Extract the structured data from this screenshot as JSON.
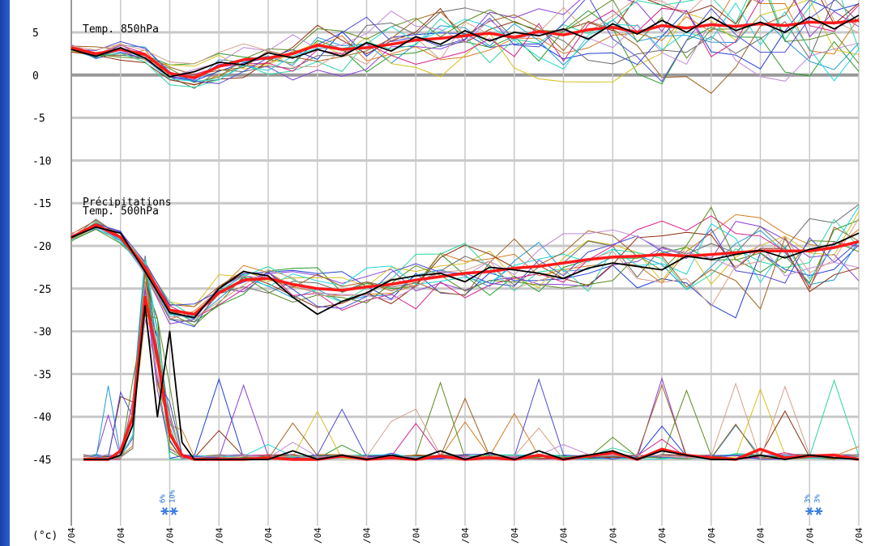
{
  "chart_data": {
    "type": "line",
    "unit_label": "(°c)",
    "panel_labels": [
      "Temp. 850hPa",
      "Précipitations",
      "Temp. 500hPa"
    ],
    "y_ticks": [
      5,
      0,
      -5,
      -10,
      -15,
      -20,
      -25,
      -30,
      -35,
      -40,
      -45
    ],
    "ylim": [
      -52,
      9
    ],
    "zero_line": 0,
    "x_tick_labels": [
      "/04",
      "/04",
      "/04",
      "/04",
      "/04",
      "/04",
      "/04",
      "/04",
      "/04",
      "/04",
      "/04",
      "/04",
      "/04",
      "/04",
      "/04",
      "/04",
      "/04"
    ],
    "snow_markers": [
      {
        "x": 2.0,
        "labels": [
          "6%",
          "10%"
        ]
      },
      {
        "x": 15.1,
        "labels": [
          "3%",
          "3%"
        ]
      }
    ],
    "colors": {
      "mean": "#ff1a1a",
      "control": "#000000",
      "grid": "#c8c8c8",
      "zero_line": "#999999",
      "members": [
        "#1f3fd6",
        "#2a9a2a",
        "#8a3fd6",
        "#d67a1f",
        "#1f9ad6",
        "#d6c01f",
        "#6a6a6a",
        "#8a2a0a",
        "#2ad6a0",
        "#d61f8a",
        "#5a8a1f",
        "#1fd6d6",
        "#a0601f",
        "#4a4ad6",
        "#c08ad6",
        "#d6a08a"
      ]
    },
    "series": [
      {
        "role": "mean",
        "panel": "850",
        "x": [
          0,
          0.5,
          1,
          1.5,
          2,
          2.5,
          3,
          3.5,
          4,
          4.5,
          5,
          5.5,
          6,
          6.5,
          7,
          7.5,
          8,
          8.5,
          9,
          9.5,
          10,
          10.5,
          11,
          11.5,
          12,
          12.5,
          13,
          13.5,
          14,
          14.5,
          15,
          15.5,
          16
        ],
        "y": [
          3.2,
          2.5,
          3.0,
          2.4,
          0.2,
          -0.3,
          1.0,
          1.8,
          2.0,
          2.5,
          3.5,
          3.0,
          3.2,
          3.6,
          4.1,
          4.3,
          4.6,
          4.9,
          4.4,
          5.1,
          4.7,
          5.3,
          5.6,
          5.0,
          5.8,
          5.5,
          5.9,
          5.7,
          6.0,
          5.8,
          6.2,
          6.1,
          6.4
        ]
      },
      {
        "role": "control",
        "panel": "850",
        "x": [
          0,
          0.5,
          1,
          1.5,
          2,
          2.5,
          3,
          3.5,
          4,
          4.5,
          5,
          5.5,
          6,
          6.5,
          7,
          7.5,
          8,
          8.5,
          9,
          9.5,
          10,
          10.5,
          11,
          11.5,
          12,
          12.5,
          13,
          13.5,
          14,
          14.5,
          15,
          15.5,
          16
        ],
        "y": [
          3.0,
          2.2,
          3.2,
          2.0,
          -0.2,
          0.4,
          1.5,
          1.2,
          2.6,
          2.0,
          3.0,
          2.2,
          3.8,
          2.8,
          4.5,
          3.6,
          5.2,
          4.0,
          5.0,
          4.6,
          5.4,
          4.2,
          6.0,
          4.8,
          6.4,
          5.0,
          6.8,
          5.2,
          6.2,
          5.0,
          6.8,
          5.4,
          7.0
        ]
      },
      {
        "role": "mean",
        "panel": "500",
        "x": [
          0,
          0.5,
          1,
          1.5,
          2,
          2.5,
          3,
          3.5,
          4,
          4.5,
          5,
          5.5,
          6,
          6.5,
          7,
          7.5,
          8,
          8.5,
          9,
          9.5,
          10,
          10.5,
          11,
          11.5,
          12,
          12.5,
          13,
          13.5,
          14,
          14.5,
          15,
          15.5,
          16
        ],
        "y": [
          -19,
          -17.5,
          -19,
          -22.5,
          -27.5,
          -28,
          -25.5,
          -24,
          -23.8,
          -24.5,
          -25,
          -25.2,
          -24.8,
          -24.5,
          -24,
          -23.6,
          -23.2,
          -23.0,
          -22.6,
          -22.4,
          -22,
          -21.6,
          -21.3,
          -21.2,
          -21,
          -21.2,
          -21.0,
          -20.8,
          -20.6,
          -20.6,
          -20.6,
          -20.2,
          -19.5
        ]
      },
      {
        "role": "control",
        "panel": "500",
        "x": [
          0,
          0.5,
          1,
          1.5,
          2,
          2.5,
          3,
          3.5,
          4,
          4.5,
          5,
          5.5,
          6,
          6.5,
          7,
          7.5,
          8,
          8.5,
          9,
          9.5,
          10,
          10.5,
          11,
          11.5,
          12,
          12.5,
          13,
          13.5,
          14,
          14.5,
          15,
          15.5,
          16
        ],
        "y": [
          -19,
          -17.8,
          -18.5,
          -23,
          -27.8,
          -28.4,
          -25,
          -23,
          -23.5,
          -26,
          -28,
          -26.5,
          -25.5,
          -24,
          -23.5,
          -23.2,
          -24.2,
          -22.5,
          -22.8,
          -23.2,
          -23.8,
          -22.6,
          -22.0,
          -22.4,
          -22.8,
          -21.2,
          -21.6,
          -21.0,
          -20.5,
          -21.4,
          -20.4,
          -19.8,
          -18.5
        ]
      },
      {
        "role": "mean",
        "panel": "precip",
        "x": [
          0.25,
          0.5,
          0.75,
          1,
          1.25,
          1.5,
          1.75,
          2,
          2.25,
          2.5,
          3,
          3.5,
          4,
          4.5,
          5,
          5.5,
          6,
          6.5,
          7,
          7.5,
          8,
          8.5,
          9,
          9.5,
          10,
          10.5,
          11,
          11.5,
          12,
          12.5,
          13,
          13.5,
          14,
          14.5,
          15,
          15.5,
          16
        ],
        "y": [
          -45,
          -45,
          -45,
          -44,
          -40,
          -26,
          -33,
          -42,
          -44.5,
          -45,
          -45,
          -45,
          -44.8,
          -45,
          -45,
          -44.6,
          -45,
          -44.8,
          -45,
          -44.6,
          -45,
          -44.8,
          -45,
          -44.5,
          -45,
          -44.6,
          -44.2,
          -45,
          -43.8,
          -44.5,
          -44.8,
          -45,
          -43.8,
          -44.8,
          -44.6,
          -44.5,
          -45
        ]
      },
      {
        "role": "control",
        "panel": "precip",
        "x": [
          0.25,
          0.5,
          0.75,
          1,
          1.25,
          1.5,
          1.75,
          2,
          2.25,
          2.5,
          3,
          3.5,
          4,
          4.5,
          5,
          5.5,
          6,
          6.5,
          7,
          7.5,
          8,
          8.5,
          9,
          9.5,
          10,
          10.5,
          11,
          11.5,
          12,
          12.5,
          13,
          13.5,
          14,
          14.5,
          15,
          15.5,
          16
        ],
        "y": [
          -45,
          -45,
          -45,
          -44.5,
          -41,
          -27,
          -40,
          -30,
          -43,
          -45,
          -45,
          -45,
          -45,
          -44,
          -45,
          -44.5,
          -45,
          -44.5,
          -45,
          -44,
          -45,
          -44.2,
          -45,
          -44,
          -45,
          -44.5,
          -44,
          -45,
          -44,
          -44.5,
          -45,
          -45,
          -44.5,
          -45,
          -44.5,
          -44.8,
          -45
        ]
      }
    ]
  }
}
